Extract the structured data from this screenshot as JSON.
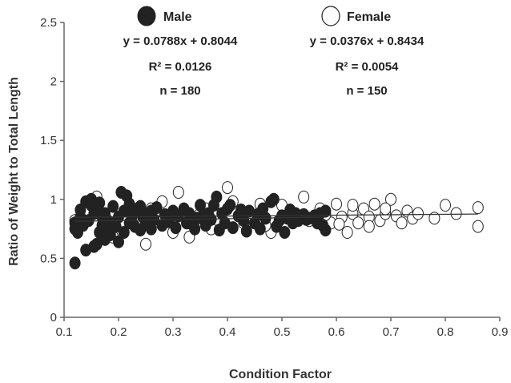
{
  "chart_data": {
    "type": "scatter",
    "title": "",
    "xlabel": "Condition Factor",
    "ylabel": "Ratio of Weight to Total Length",
    "xlim": [
      0.1,
      0.9
    ],
    "ylim": [
      0,
      2.5
    ],
    "xticks": [
      "0.1",
      "0.2",
      "0.3",
      "0.4",
      "0.5",
      "0.6",
      "0.7",
      "0.8",
      "0.9"
    ],
    "yticks": [
      "0",
      "0.5",
      "1",
      "1.5",
      "2",
      "2.5"
    ],
    "grid": false,
    "legend_position": "top",
    "series": [
      {
        "name": "Male",
        "marker": "filled-circle",
        "color": "#222222",
        "equation": "y = 0.0788x + 0.8044",
        "r2_label": "R² = 0.0126",
        "n_label": "n = 180",
        "trend": {
          "slope": 0.0788,
          "intercept": 0.8044
        },
        "points": [
          [
            0.12,
            0.46
          ],
          [
            0.12,
            0.75
          ],
          [
            0.12,
            0.8
          ],
          [
            0.125,
            0.72
          ],
          [
            0.13,
            0.85
          ],
          [
            0.135,
            0.78
          ],
          [
            0.14,
            0.98
          ],
          [
            0.14,
            0.57
          ],
          [
            0.145,
            0.82
          ],
          [
            0.15,
            0.95
          ],
          [
            0.15,
            1.0
          ],
          [
            0.155,
            0.6
          ],
          [
            0.155,
            0.88
          ],
          [
            0.16,
            0.62
          ],
          [
            0.16,
            0.93
          ],
          [
            0.165,
            0.72
          ],
          [
            0.17,
            0.78
          ],
          [
            0.17,
            0.85
          ],
          [
            0.175,
            0.66
          ],
          [
            0.18,
            0.75
          ],
          [
            0.18,
            0.82
          ],
          [
            0.185,
            0.7
          ],
          [
            0.19,
            0.8
          ],
          [
            0.19,
            0.94
          ],
          [
            0.195,
            0.77
          ],
          [
            0.2,
            0.64
          ],
          [
            0.2,
            0.85
          ],
          [
            0.205,
            1.06
          ],
          [
            0.21,
            0.72
          ],
          [
            0.21,
            0.9
          ],
          [
            0.215,
            1.03
          ],
          [
            0.22,
            0.8
          ],
          [
            0.225,
            0.86
          ],
          [
            0.23,
            0.77
          ],
          [
            0.235,
            0.92
          ],
          [
            0.24,
            0.74
          ],
          [
            0.245,
            0.85
          ],
          [
            0.25,
            0.8
          ],
          [
            0.255,
            0.88
          ],
          [
            0.26,
            0.75
          ],
          [
            0.265,
            0.83
          ],
          [
            0.27,
            0.93
          ],
          [
            0.28,
            0.78
          ],
          [
            0.285,
            0.87
          ],
          [
            0.29,
            0.81
          ],
          [
            0.3,
            0.9
          ],
          [
            0.305,
            0.76
          ],
          [
            0.31,
            0.86
          ],
          [
            0.32,
            0.92
          ],
          [
            0.325,
            0.8
          ],
          [
            0.33,
            0.88
          ],
          [
            0.34,
            0.75
          ],
          [
            0.345,
            0.84
          ],
          [
            0.35,
            0.95
          ],
          [
            0.36,
            0.78
          ],
          [
            0.365,
            0.88
          ],
          [
            0.37,
            0.83
          ],
          [
            0.375,
            0.95
          ],
          [
            0.38,
            1.02
          ],
          [
            0.385,
            0.74
          ],
          [
            0.39,
            0.88
          ],
          [
            0.395,
            0.8
          ],
          [
            0.4,
            0.92
          ],
          [
            0.41,
            0.76
          ],
          [
            0.42,
            0.86
          ],
          [
            0.43,
            0.82
          ],
          [
            0.435,
            0.73
          ],
          [
            0.44,
            0.9
          ],
          [
            0.45,
            0.8
          ],
          [
            0.455,
            0.87
          ],
          [
            0.46,
            0.75
          ],
          [
            0.47,
            0.84
          ],
          [
            0.48,
            0.98
          ],
          [
            0.485,
            1.0
          ],
          [
            0.49,
            0.77
          ],
          [
            0.5,
            0.86
          ],
          [
            0.505,
            0.72
          ],
          [
            0.51,
            0.84
          ],
          [
            0.52,
            0.8
          ],
          [
            0.525,
            0.88
          ],
          [
            0.53,
            0.82
          ],
          [
            0.54,
            0.87
          ],
          [
            0.55,
            0.84
          ],
          [
            0.56,
            0.86
          ],
          [
            0.565,
            0.8
          ],
          [
            0.57,
            0.88
          ],
          [
            0.575,
            0.78
          ],
          [
            0.58,
            0.74
          ],
          [
            0.58,
            0.9
          ],
          [
            0.13,
            0.91
          ],
          [
            0.165,
            0.97
          ],
          [
            0.175,
            0.88
          ],
          [
            0.22,
            0.96
          ],
          [
            0.24,
            0.94
          ],
          [
            0.26,
            0.9
          ],
          [
            0.295,
            0.85
          ],
          [
            0.33,
            0.8
          ],
          [
            0.355,
            0.86
          ],
          [
            0.405,
            0.95
          ],
          [
            0.425,
            0.91
          ],
          [
            0.465,
            0.92
          ],
          [
            0.495,
            0.82
          ],
          [
            0.515,
            0.91
          ],
          [
            0.545,
            0.83
          ]
        ]
      },
      {
        "name": "Female",
        "marker": "open-circle",
        "color": "#222222",
        "equation": "y = 0.0376x + 0.8434",
        "r2_label": "R² = 0.0054",
        "n_label": "n = 150",
        "trend": {
          "slope": 0.0376,
          "intercept": 0.8434
        },
        "points": [
          [
            0.12,
            0.82
          ],
          [
            0.16,
            1.02
          ],
          [
            0.19,
            0.68
          ],
          [
            0.22,
            0.95
          ],
          [
            0.25,
            0.62
          ],
          [
            0.26,
            0.92
          ],
          [
            0.28,
            0.98
          ],
          [
            0.3,
            0.72
          ],
          [
            0.31,
            1.06
          ],
          [
            0.33,
            0.68
          ],
          [
            0.35,
            0.88
          ],
          [
            0.37,
            0.75
          ],
          [
            0.4,
            1.1
          ],
          [
            0.41,
            0.98
          ],
          [
            0.43,
            0.8
          ],
          [
            0.46,
            0.96
          ],
          [
            0.48,
            0.72
          ],
          [
            0.5,
            0.95
          ],
          [
            0.52,
            0.88
          ],
          [
            0.54,
            1.02
          ],
          [
            0.55,
            0.82
          ],
          [
            0.57,
            0.92
          ],
          [
            0.59,
            0.8
          ],
          [
            0.6,
            0.96
          ],
          [
            0.61,
            0.85
          ],
          [
            0.62,
            0.72
          ],
          [
            0.63,
            0.88
          ],
          [
            0.64,
            0.8
          ],
          [
            0.65,
            0.92
          ],
          [
            0.66,
            0.85
          ],
          [
            0.67,
            0.96
          ],
          [
            0.68,
            0.82
          ],
          [
            0.69,
            0.88
          ],
          [
            0.7,
            1.0
          ],
          [
            0.71,
            0.86
          ],
          [
            0.72,
            0.8
          ],
          [
            0.73,
            0.9
          ],
          [
            0.74,
            0.84
          ],
          [
            0.75,
            0.88
          ],
          [
            0.78,
            0.84
          ],
          [
            0.8,
            0.95
          ],
          [
            0.82,
            0.88
          ],
          [
            0.86,
            0.93
          ],
          [
            0.86,
            0.77
          ],
          [
            0.28,
            0.82
          ],
          [
            0.36,
            0.92
          ],
          [
            0.44,
            0.85
          ],
          [
            0.47,
            0.78
          ],
          [
            0.53,
            0.84
          ],
          [
            0.58,
            0.87
          ],
          [
            0.63,
            0.95
          ],
          [
            0.66,
            0.77
          ],
          [
            0.69,
            0.92
          ],
          [
            0.605,
            0.79
          ]
        ]
      }
    ]
  }
}
